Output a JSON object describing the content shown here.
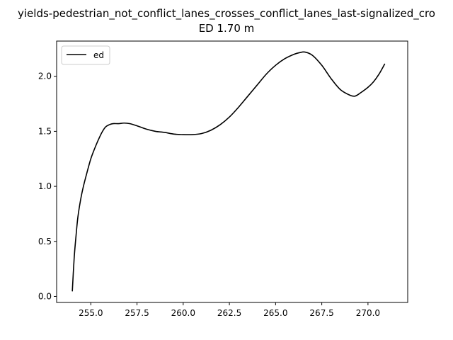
{
  "chart_data": {
    "type": "line",
    "title_line1": "yields-pedestrian_not_conflict_lanes_crosses_conflict_lanes_last-signalized_cro",
    "title_line2": "ED 1.70 m",
    "xlabel": "",
    "ylabel": "",
    "xlim": [
      253.15,
      272.15
    ],
    "ylim": [
      -0.055,
      2.32
    ],
    "xticks": [
      255.0,
      257.5,
      260.0,
      262.5,
      265.0,
      267.5,
      270.0
    ],
    "xtick_labels": [
      "255.0",
      "257.5",
      "260.0",
      "262.5",
      "265.0",
      "267.5",
      "270.0"
    ],
    "yticks": [
      0.0,
      0.5,
      1.0,
      1.5,
      2.0
    ],
    "ytick_labels": [
      "0.0",
      "0.5",
      "1.0",
      "1.5",
      "2.0"
    ],
    "grid": false,
    "legend_position": "top-left",
    "series": [
      {
        "name": "ed",
        "color": "#000000",
        "x": [
          254.0,
          254.1,
          254.2,
          254.3,
          254.45,
          254.6,
          254.8,
          255.0,
          255.2,
          255.4,
          255.6,
          255.8,
          256.0,
          256.2,
          256.5,
          256.8,
          257.1,
          257.5,
          258.0,
          258.5,
          259.0,
          259.5,
          260.0,
          260.5,
          261.0,
          261.5,
          262.0,
          262.5,
          263.0,
          263.5,
          264.0,
          264.5,
          265.0,
          265.5,
          266.0,
          266.3,
          266.6,
          267.0,
          267.5,
          268.0,
          268.5,
          269.0,
          269.3,
          269.6,
          270.0,
          270.3,
          270.6,
          270.9
        ],
        "y": [
          0.05,
          0.35,
          0.55,
          0.72,
          0.88,
          1.0,
          1.13,
          1.25,
          1.34,
          1.42,
          1.49,
          1.54,
          1.56,
          1.57,
          1.57,
          1.575,
          1.57,
          1.55,
          1.52,
          1.5,
          1.49,
          1.475,
          1.47,
          1.47,
          1.48,
          1.51,
          1.56,
          1.63,
          1.72,
          1.82,
          1.92,
          2.02,
          2.1,
          2.16,
          2.2,
          2.215,
          2.22,
          2.19,
          2.1,
          1.98,
          1.88,
          1.83,
          1.82,
          1.85,
          1.9,
          1.95,
          2.02,
          2.11
        ]
      }
    ]
  }
}
